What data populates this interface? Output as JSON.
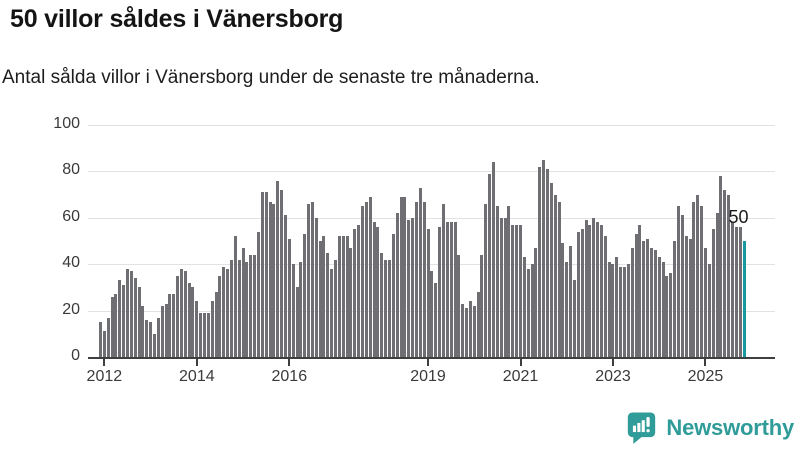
{
  "header": {
    "title": "50 villor såldes i Vänersborg",
    "subtitle": "Antal sålda villor i Vänersborg under de senaste tre månaderna."
  },
  "chart_data": {
    "type": "bar",
    "title": "50 villor såldes i Vänersborg",
    "subtitle": "Antal sålda villor i Vänersborg under de senaste tre månaderna.",
    "ylim": [
      0,
      100
    ],
    "y_ticks": [
      0,
      20,
      40,
      60,
      80,
      100
    ],
    "x_tick_labels": [
      "2012",
      "2014",
      "2016",
      "2019",
      "2021",
      "2023",
      "2025"
    ],
    "grid": true,
    "legend": null,
    "start_month": "2011-12",
    "end_month": "2025-11",
    "values": [
      15,
      11,
      17,
      26,
      27,
      33,
      31,
      38,
      37,
      34,
      30,
      22,
      16,
      15,
      10,
      17,
      22,
      23,
      27,
      27,
      35,
      38,
      37,
      32,
      30,
      24,
      19,
      19,
      19,
      24,
      28,
      35,
      39,
      38,
      42,
      52,
      42,
      47,
      41,
      44,
      44,
      54,
      71,
      71,
      67,
      66,
      76,
      72,
      61,
      51,
      40,
      30,
      41,
      53,
      66,
      67,
      60,
      50,
      52,
      45,
      38,
      42,
      52,
      52,
      52,
      47,
      55,
      57,
      65,
      67,
      69,
      58,
      56,
      45,
      42,
      42,
      53,
      62,
      69,
      69,
      59,
      60,
      67,
      73,
      67,
      55,
      37,
      32,
      56,
      66,
      58,
      58,
      58,
      44,
      23,
      21,
      24,
      22,
      28,
      44,
      66,
      79,
      84,
      65,
      60,
      60,
      65,
      57,
      57,
      57,
      43,
      38,
      40,
      47,
      82,
      85,
      81,
      75,
      70,
      67,
      49,
      41,
      48,
      33,
      54,
      55,
      59,
      57,
      60,
      58,
      57,
      52,
      41,
      40,
      43,
      39,
      39,
      40,
      47,
      53,
      57,
      50,
      51,
      47,
      46,
      43,
      41,
      35,
      36,
      50,
      65,
      61,
      52,
      51,
      67,
      70,
      65,
      47,
      40,
      55,
      62,
      78,
      72,
      70,
      58,
      56,
      56,
      50
    ],
    "highlight_last": true,
    "annotation": {
      "text": "50",
      "value": 50
    },
    "colors": {
      "bar": "#6e6e73",
      "highlight": "#1898a0",
      "grid": "#e2e2e2",
      "axis": "#3f3f3f",
      "tick_label": "#3a3a3a"
    }
  },
  "footer": {
    "brand": "Newsworthy",
    "brand_color": "#2f9c99"
  }
}
